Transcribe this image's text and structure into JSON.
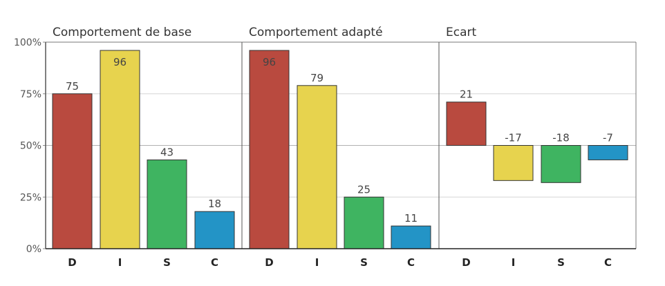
{
  "chart_data": [
    {
      "type": "bar",
      "title": "Comportement de base",
      "categories": [
        "D",
        "I",
        "S",
        "C"
      ],
      "values": [
        75,
        96,
        43,
        18
      ],
      "value_labels": [
        "75",
        "96",
        "43",
        "18"
      ],
      "colors": [
        "#b94a3f",
        "#e7d34e",
        "#3fb461",
        "#2394c6"
      ],
      "ylim": [
        0,
        100
      ],
      "yticks": [
        "0%",
        "25%",
        "50%",
        "75%",
        "100%"
      ],
      "grid": true
    },
    {
      "type": "bar",
      "title": "Comportement adapté",
      "categories": [
        "D",
        "I",
        "S",
        "C"
      ],
      "values": [
        96,
        79,
        25,
        11
      ],
      "value_labels": [
        "96",
        "79",
        "25",
        "11"
      ],
      "colors": [
        "#b94a3f",
        "#e7d34e",
        "#3fb461",
        "#2394c6"
      ],
      "ylim": [
        0,
        100
      ],
      "grid": true
    },
    {
      "type": "bar",
      "title": "Ecart",
      "categories": [
        "D",
        "I",
        "S",
        "C"
      ],
      "values": [
        21,
        -17,
        -18,
        -7
      ],
      "value_labels": [
        "21",
        "-17",
        "-18",
        "-7"
      ],
      "colors": [
        "#b94a3f",
        "#e7d34e",
        "#3fb461",
        "#2394c6"
      ],
      "baseline": 50,
      "ylim": [
        0,
        100
      ],
      "grid": true
    }
  ]
}
